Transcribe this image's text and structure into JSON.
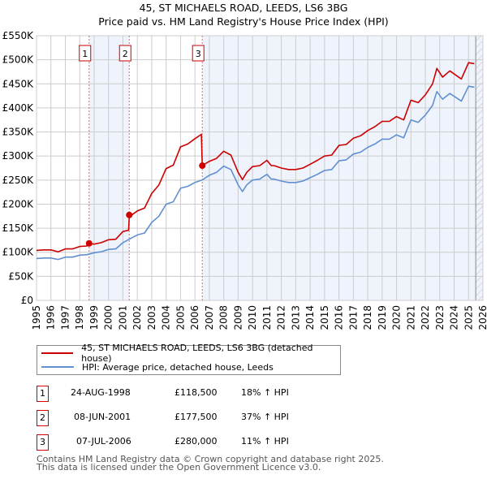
{
  "chart_data": {
    "type": "line",
    "title": "45, ST MICHAELS ROAD, LEEDS, LS6 3BG",
    "subtitle": "Price paid vs. HM Land Registry's House Price Index (HPI)",
    "xlim": [
      1995,
      2026
    ],
    "ylim": [
      0,
      550000
    ],
    "x_ticks": [
      "1995",
      "1996",
      "1997",
      "1998",
      "1999",
      "2000",
      "2001",
      "2002",
      "2003",
      "2004",
      "2005",
      "2006",
      "2007",
      "2008",
      "2009",
      "2010",
      "2011",
      "2012",
      "2013",
      "2014",
      "2015",
      "2016",
      "2017",
      "2018",
      "2019",
      "2020",
      "2021",
      "2022",
      "2023",
      "2024",
      "2025",
      "2026"
    ],
    "y_ticks": [
      {
        "v": 0,
        "label": "£0"
      },
      {
        "v": 50000,
        "label": "£50K"
      },
      {
        "v": 100000,
        "label": "£100K"
      },
      {
        "v": 150000,
        "label": "£150K"
      },
      {
        "v": 200000,
        "label": "£200K"
      },
      {
        "v": 250000,
        "label": "£250K"
      },
      {
        "v": 300000,
        "label": "£300K"
      },
      {
        "v": 350000,
        "label": "£350K"
      },
      {
        "v": 400000,
        "label": "£400K"
      },
      {
        "v": 450000,
        "label": "£450K"
      },
      {
        "v": 500000,
        "label": "£500K"
      },
      {
        "v": 550000,
        "label": "£550K"
      }
    ],
    "grid": true,
    "colors": {
      "property": "#cc0000",
      "hpi": "#6090d0",
      "shade": "#eef3fc"
    },
    "series": [
      {
        "name": "property",
        "points": [
          [
            1995,
            104
          ],
          [
            1995.5,
            105
          ],
          [
            1996,
            105
          ],
          [
            1996.5,
            101
          ],
          [
            1997,
            107
          ],
          [
            1997.5,
            107
          ],
          [
            1998,
            112
          ],
          [
            1998.5,
            113
          ],
          [
            1998.65,
            118.5
          ],
          [
            1999,
            117
          ],
          [
            1999.5,
            120
          ],
          [
            2000,
            126
          ],
          [
            2000.5,
            127
          ],
          [
            2001,
            143
          ],
          [
            2001.4,
            146
          ],
          [
            2001.44,
            177.5
          ],
          [
            2001.5,
            175
          ],
          [
            2002,
            186
          ],
          [
            2002.5,
            192
          ],
          [
            2003,
            222
          ],
          [
            2003.5,
            240
          ],
          [
            2004,
            274
          ],
          [
            2004.5,
            281
          ],
          [
            2005,
            319
          ],
          [
            2005.5,
            325
          ],
          [
            2006,
            336
          ],
          [
            2006.45,
            345
          ],
          [
            2006.51,
            280
          ],
          [
            2007,
            289
          ],
          [
            2007.5,
            295
          ],
          [
            2008,
            310
          ],
          [
            2008.5,
            302
          ],
          [
            2009,
            266
          ],
          [
            2009.3,
            251
          ],
          [
            2009.6,
            266
          ],
          [
            2010,
            278
          ],
          [
            2010.5,
            280
          ],
          [
            2011,
            291
          ],
          [
            2011.3,
            280
          ],
          [
            2011.5,
            280
          ],
          [
            2012,
            275
          ],
          [
            2012.5,
            272
          ],
          [
            2013,
            272
          ],
          [
            2013.5,
            275
          ],
          [
            2014,
            283
          ],
          [
            2014.5,
            291
          ],
          [
            2015,
            300
          ],
          [
            2015.5,
            302
          ],
          [
            2016,
            322
          ],
          [
            2016.5,
            324
          ],
          [
            2017,
            337
          ],
          [
            2017.5,
            342
          ],
          [
            2018,
            353
          ],
          [
            2018.5,
            361
          ],
          [
            2019,
            372
          ],
          [
            2019.5,
            372
          ],
          [
            2020,
            382
          ],
          [
            2020.5,
            375
          ],
          [
            2021,
            416
          ],
          [
            2021.5,
            411
          ],
          [
            2022,
            427
          ],
          [
            2022.5,
            450
          ],
          [
            2022.8,
            482
          ],
          [
            2023.2,
            464
          ],
          [
            2023.7,
            477
          ],
          [
            2024.5,
            460
          ],
          [
            2025,
            494
          ],
          [
            2025.4,
            492
          ]
        ]
      },
      {
        "name": "hpi",
        "points": [
          [
            1995,
            87
          ],
          [
            1995.5,
            88
          ],
          [
            1996,
            88
          ],
          [
            1996.5,
            85
          ],
          [
            1997,
            90
          ],
          [
            1997.5,
            90
          ],
          [
            1998,
            94
          ],
          [
            1998.5,
            95
          ],
          [
            1999,
            99
          ],
          [
            1999.5,
            101
          ],
          [
            2000,
            106
          ],
          [
            2000.5,
            107
          ],
          [
            2001,
            120
          ],
          [
            2001.5,
            128
          ],
          [
            2002,
            136
          ],
          [
            2002.5,
            140
          ],
          [
            2003,
            162
          ],
          [
            2003.5,
            175
          ],
          [
            2004,
            200
          ],
          [
            2004.5,
            205
          ],
          [
            2005,
            233
          ],
          [
            2005.5,
            237
          ],
          [
            2006,
            245
          ],
          [
            2006.5,
            250
          ],
          [
            2007,
            260
          ],
          [
            2007.5,
            266
          ],
          [
            2008,
            279
          ],
          [
            2008.5,
            272
          ],
          [
            2009,
            240
          ],
          [
            2009.3,
            226
          ],
          [
            2009.6,
            240
          ],
          [
            2010,
            250
          ],
          [
            2010.5,
            252
          ],
          [
            2011,
            262
          ],
          [
            2011.3,
            252
          ],
          [
            2011.5,
            252
          ],
          [
            2012,
            248
          ],
          [
            2012.5,
            245
          ],
          [
            2013,
            245
          ],
          [
            2013.5,
            248
          ],
          [
            2014,
            255
          ],
          [
            2014.5,
            262
          ],
          [
            2015,
            270
          ],
          [
            2015.5,
            272
          ],
          [
            2016,
            290
          ],
          [
            2016.5,
            292
          ],
          [
            2017,
            304
          ],
          [
            2017.5,
            308
          ],
          [
            2018,
            318
          ],
          [
            2018.5,
            325
          ],
          [
            2019,
            335
          ],
          [
            2019.5,
            335
          ],
          [
            2020,
            344
          ],
          [
            2020.5,
            338
          ],
          [
            2021,
            375
          ],
          [
            2021.5,
            370
          ],
          [
            2022,
            385
          ],
          [
            2022.5,
            405
          ],
          [
            2022.8,
            434
          ],
          [
            2023.2,
            418
          ],
          [
            2023.7,
            430
          ],
          [
            2024.5,
            414
          ],
          [
            2025,
            445
          ],
          [
            2025.4,
            443
          ]
        ]
      }
    ],
    "value_unit": "thousands GBP",
    "sales": [
      {
        "n": "1",
        "x": 1998.65,
        "v": 118.5
      },
      {
        "n": "2",
        "x": 2001.44,
        "v": 177.5
      },
      {
        "n": "3",
        "x": 2006.51,
        "v": 280
      }
    ],
    "shaded_ranges": [
      [
        1998.65,
        2001.44
      ],
      [
        2006.51,
        2026
      ]
    ],
    "hatch_from": 2025.5
  },
  "header": {
    "title": "45, ST MICHAELS ROAD, LEEDS, LS6 3BG",
    "subtitle": "Price paid vs. HM Land Registry's House Price Index (HPI)"
  },
  "legend": {
    "property": "45, ST MICHAELS ROAD, LEEDS, LS6 3BG (detached house)",
    "hpi": "HPI: Average price, detached house, Leeds"
  },
  "transactions": [
    {
      "n": "1",
      "date": "24-AUG-1998",
      "price": "£118,500",
      "hpi": "18% ↑ HPI"
    },
    {
      "n": "2",
      "date": "08-JUN-2001",
      "price": "£177,500",
      "hpi": "37% ↑ HPI"
    },
    {
      "n": "3",
      "date": "07-JUL-2006",
      "price": "£280,000",
      "hpi": "11% ↑ HPI"
    }
  ],
  "footer": {
    "line1": "Contains HM Land Registry data © Crown copyright and database right 2025.",
    "line2": "This data is licensed under the Open Government Licence v3.0."
  }
}
